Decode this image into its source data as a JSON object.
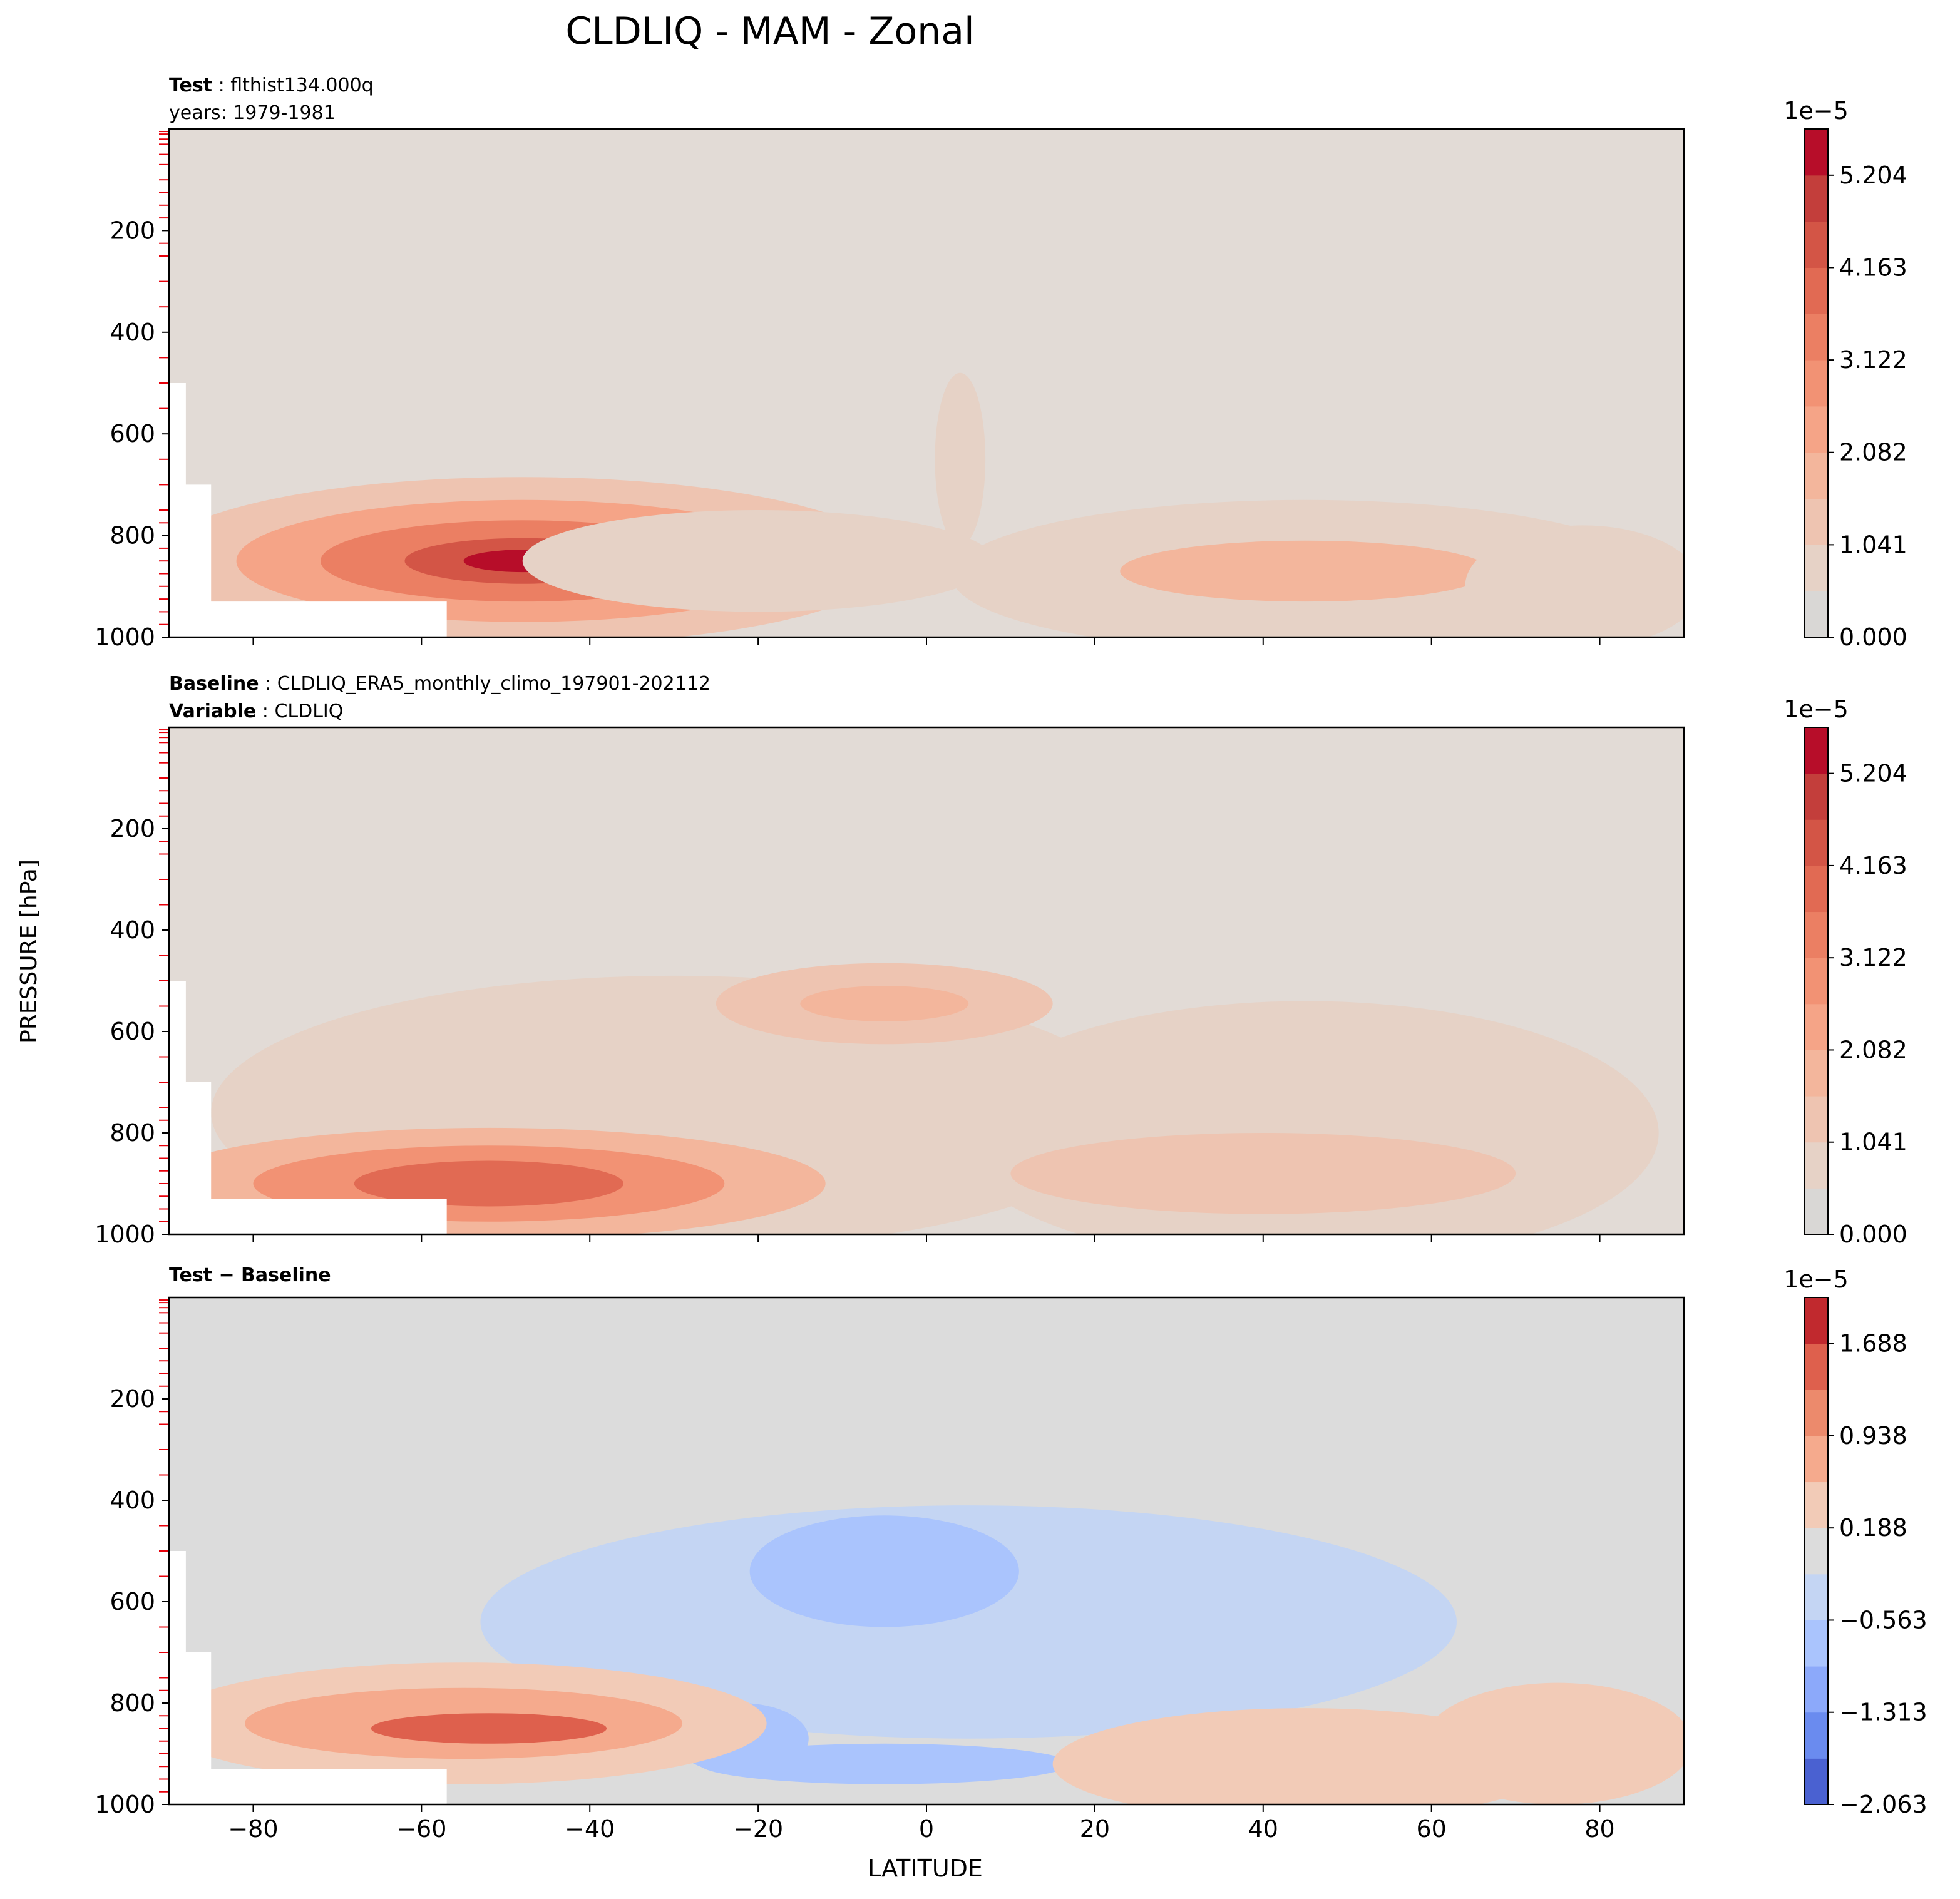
{
  "figure": {
    "title": "CLDLIQ - MAM - Zonal",
    "ylabel": "PRESSURE [hPa]",
    "xlabel": "LATITUDE"
  },
  "panels": [
    {
      "header_lines": [
        {
          "bold": "Test",
          "sep": " : ",
          "text": "flthist134.000q"
        },
        {
          "bold": "",
          "sep": "",
          "text": "years: 1979-1981"
        }
      ],
      "background_color": "#e2dbd6",
      "colorbar": {
        "multiplier": "1e−5",
        "tick_labels": [
          "5.204",
          "4.163",
          "3.122",
          "2.082",
          "1.041",
          "0.000"
        ],
        "colors": [
          "#d9d7d5",
          "#e6d2c6",
          "#eec4b1",
          "#f3b69c",
          "#f5a487",
          "#f29274",
          "#eb7f63",
          "#e16a53",
          "#d35546",
          "#c33e3b",
          "#b70d29"
        ]
      }
    },
    {
      "header_lines": [
        {
          "bold": "Baseline",
          "sep": " : ",
          "text": "CLDLIQ_ERA5_monthly_climo_197901-202112"
        },
        {
          "bold": "Variable",
          "sep": " : ",
          "text": "CLDLIQ"
        }
      ],
      "background_color": "#e2dbd6",
      "colorbar": {
        "multiplier": "1e−5",
        "tick_labels": [
          "5.204",
          "4.163",
          "3.122",
          "2.082",
          "1.041",
          "0.000"
        ],
        "colors": [
          "#d9d7d5",
          "#e6d2c6",
          "#eec4b1",
          "#f3b69c",
          "#f5a487",
          "#f29274",
          "#eb7f63",
          "#e16a53",
          "#d35546",
          "#c33e3b",
          "#b70d29"
        ]
      }
    },
    {
      "header_lines": [
        {
          "bold": "Test − Baseline",
          "sep": "",
          "text": ""
        }
      ],
      "background_color": "#dcdcdc",
      "colorbar": {
        "multiplier": "1e−5",
        "tick_labels": [
          "1.688",
          "0.938",
          "0.188",
          "−0.563",
          "−1.313",
          "−2.063"
        ],
        "colors": [
          "#4a61d1",
          "#6a8bef",
          "#8ca9fa",
          "#aac4fd",
          "#c4d5f3",
          "#dcdcdc",
          "#f2cbb7",
          "#f5aa8d",
          "#ec8a6c",
          "#de604d",
          "#c1292e"
        ]
      }
    }
  ],
  "chart_data": {
    "type": "contour",
    "title": "CLDLIQ - MAM - Zonal",
    "xlabel": "LATITUDE",
    "ylabel": "PRESSURE [hPa]",
    "xlim": [
      -90,
      90
    ],
    "ylim": [
      1000,
      0
    ],
    "x_ticks": [
      -80,
      -60,
      -40,
      -20,
      0,
      20,
      40,
      60,
      80
    ],
    "x_tick_labels": [
      "−80",
      "−60",
      "−40",
      "−20",
      "0",
      "20",
      "40",
      "60",
      "80"
    ],
    "y_ticks": [
      200,
      400,
      600,
      800,
      1000
    ],
    "y_tick_labels": [
      "200",
      "400",
      "600",
      "800",
      "1000"
    ],
    "minor_red_ticks": [
      5,
      10,
      20,
      30,
      50,
      70,
      100,
      125,
      150,
      175,
      225,
      250,
      300,
      350,
      450,
      500,
      550,
      650,
      700,
      750,
      775,
      825,
      850,
      875,
      900,
      925,
      950,
      975
    ],
    "panels": [
      {
        "name": "Test",
        "contour_levels": [
          0.0,
          1.041,
          2.082,
          3.122,
          4.163,
          5.204
        ],
        "blobs": [
          {
            "x": -48,
            "p": 850,
            "rx": 44,
            "rp": 165,
            "level": 2
          },
          {
            "x": -48,
            "p": 850,
            "rx": 34,
            "rp": 120,
            "level": 4
          },
          {
            "x": -48,
            "p": 850,
            "rx": 24,
            "rp": 80,
            "level": 6
          },
          {
            "x": -48,
            "p": 850,
            "rx": 14,
            "rp": 45,
            "level": 8
          },
          {
            "x": -48,
            "p": 850,
            "rx": 7,
            "rp": 22,
            "level": 10
          },
          {
            "x": -20,
            "p": 850,
            "rx": 28,
            "rp": 100,
            "level": 1
          },
          {
            "x": 45,
            "p": 880,
            "rx": 42,
            "rp": 150,
            "level": 1
          },
          {
            "x": 45,
            "p": 870,
            "rx": 22,
            "rp": 60,
            "level": 3
          },
          {
            "x": 78,
            "p": 900,
            "rx": 14,
            "rp": 120,
            "level": 1
          },
          {
            "x": 4,
            "p": 650,
            "rx": 3,
            "rp": 170,
            "level": 1
          }
        ]
      },
      {
        "name": "Baseline",
        "contour_levels": [
          0.0,
          1.041,
          2.082,
          3.122,
          4.163,
          5.204
        ],
        "blobs": [
          {
            "x": -30,
            "p": 760,
            "rx": 55,
            "rp": 270,
            "level": 1
          },
          {
            "x": 45,
            "p": 800,
            "rx": 42,
            "rp": 260,
            "level": 1
          },
          {
            "x": -52,
            "p": 900,
            "rx": 40,
            "rp": 110,
            "level": 3
          },
          {
            "x": -52,
            "p": 900,
            "rx": 28,
            "rp": 75,
            "level": 5
          },
          {
            "x": -52,
            "p": 900,
            "rx": 16,
            "rp": 45,
            "level": 7
          },
          {
            "x": -5,
            "p": 545,
            "rx": 20,
            "rp": 80,
            "level": 2
          },
          {
            "x": -5,
            "p": 545,
            "rx": 10,
            "rp": 35,
            "level": 3
          },
          {
            "x": 40,
            "p": 880,
            "rx": 30,
            "rp": 80,
            "level": 2
          }
        ]
      },
      {
        "name": "Test - Baseline",
        "contour_levels": [
          -2.063,
          -1.313,
          -0.563,
          0.188,
          0.938,
          1.688
        ],
        "blobs": [
          {
            "x": 5,
            "p": 640,
            "rx": 58,
            "rp": 230,
            "level": 4
          },
          {
            "x": -5,
            "p": 540,
            "rx": 16,
            "rp": 110,
            "level": 3
          },
          {
            "x": -5,
            "p": 920,
            "rx": 22,
            "rp": 40,
            "level": 3
          },
          {
            "x": -22,
            "p": 870,
            "rx": 8,
            "rp": 70,
            "level": 3
          },
          {
            "x": -55,
            "p": 840,
            "rx": 36,
            "rp": 120,
            "level": 6
          },
          {
            "x": -55,
            "p": 840,
            "rx": 26,
            "rp": 70,
            "level": 7
          },
          {
            "x": -52,
            "p": 850,
            "rx": 14,
            "rp": 30,
            "level": 9
          },
          {
            "x": 45,
            "p": 920,
            "rx": 30,
            "rp": 110,
            "level": 6
          },
          {
            "x": 75,
            "p": 880,
            "rx": 16,
            "rp": 120,
            "level": 6
          }
        ]
      }
    ],
    "masked_region": [
      [
        -90,
        500
      ],
      [
        -88,
        500
      ],
      [
        -88,
        700
      ],
      [
        -85,
        700
      ],
      [
        -85,
        930
      ],
      [
        -57,
        930
      ],
      [
        -57,
        1000
      ],
      [
        -90,
        1000
      ]
    ]
  }
}
